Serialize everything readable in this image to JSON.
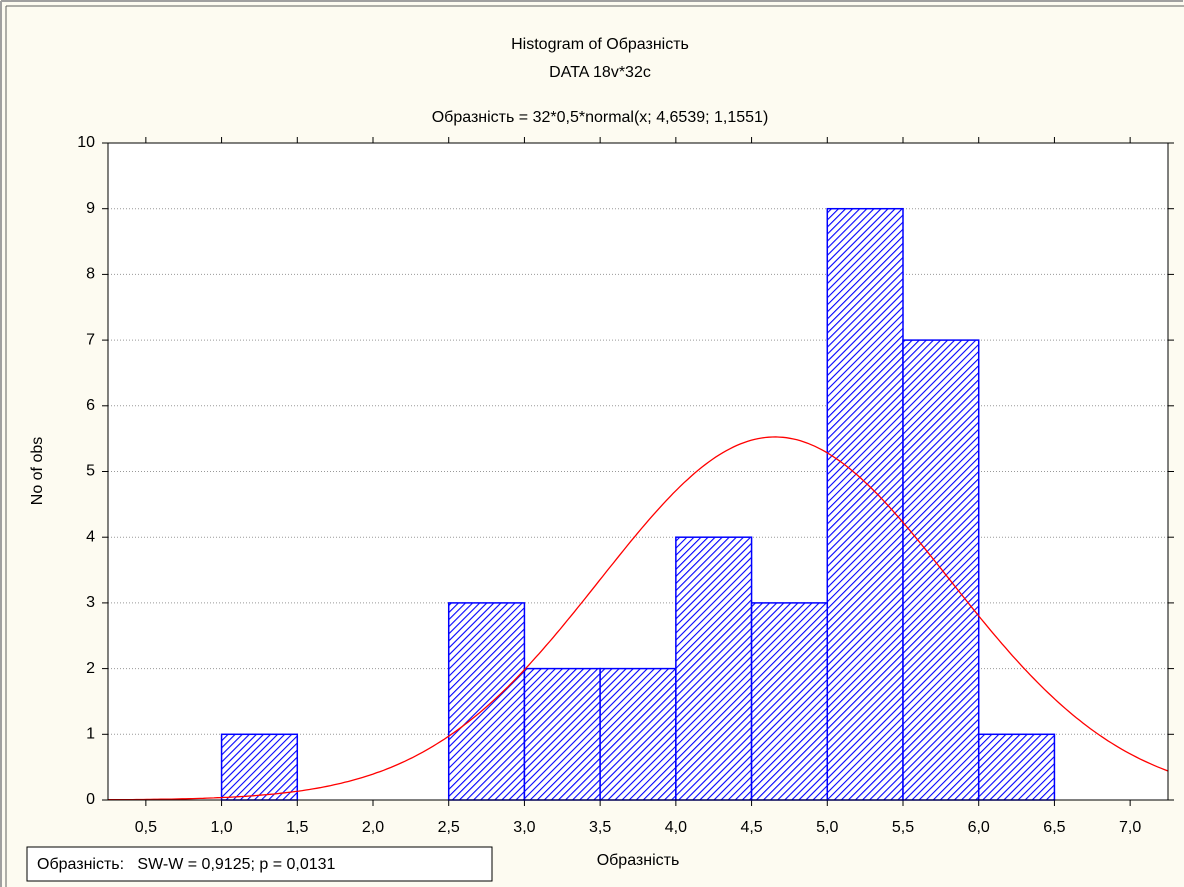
{
  "chart_data": {
    "type": "histogram",
    "title": "Histogram of Образність",
    "subtitle": "DATA 18v*32c",
    "formula": "Образність = 32*0,5*normal(x; 4,6539; 1,1551)",
    "x_label": "Образність",
    "y_label": "No of obs",
    "test_label": "Образність:   SW-W = 0,9125; p = 0,0131",
    "bins": [
      1.0,
      1.5,
      2.0,
      2.5,
      3.0,
      3.5,
      4.0,
      4.5,
      5.0,
      5.5,
      6.0,
      6.5
    ],
    "values": [
      1,
      0,
      0,
      3,
      2,
      2,
      4,
      3,
      9,
      7,
      1
    ],
    "color": "#0000ff",
    "curve_color": "#ff0000",
    "fit": {
      "n": 32,
      "width": 0.5,
      "mean": 4.6539,
      "sd": 1.1551
    },
    "xlim": [
      0.25,
      7.25
    ],
    "ylim": [
      0,
      10
    ],
    "xticks": [
      {
        "value": 0.5,
        "label": "0,5"
      },
      {
        "value": 1.0,
        "label": "1,0"
      },
      {
        "value": 1.5,
        "label": "1,5"
      },
      {
        "value": 2.0,
        "label": "2,0"
      },
      {
        "value": 2.5,
        "label": "2,5"
      },
      {
        "value": 3.0,
        "label": "3,0"
      },
      {
        "value": 3.5,
        "label": "3,5"
      },
      {
        "value": 4.0,
        "label": "4,0"
      },
      {
        "value": 4.5,
        "label": "4,5"
      },
      {
        "value": 5.0,
        "label": "5,0"
      },
      {
        "value": 5.5,
        "label": "5,5"
      },
      {
        "value": 6.0,
        "label": "6,0"
      },
      {
        "value": 6.5,
        "label": "6,5"
      },
      {
        "value": 7.0,
        "label": "7,0"
      }
    ],
    "yticks": [
      0,
      1,
      2,
      3,
      4,
      5,
      6,
      7,
      8,
      9,
      10
    ],
    "grid": true
  }
}
